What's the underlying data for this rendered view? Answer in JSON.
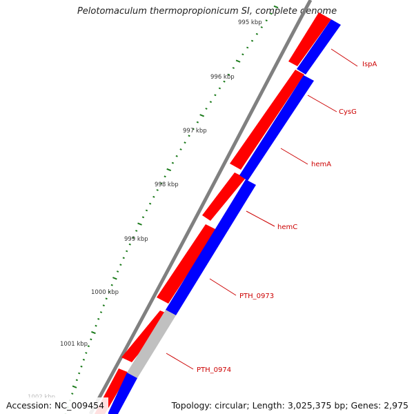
{
  "title": "Pelotomaculum thermopropionicum SI, complete genome",
  "ruler": {
    "labels": [
      "995 kbp",
      "996 kbp",
      "997 kbp",
      "998 kbp",
      "999 kbp",
      "1000 kbp",
      "1001 kbp",
      "1002 kbp"
    ]
  },
  "genes": [
    {
      "name": "IspA",
      "strand": "+"
    },
    {
      "name": "CysG",
      "strand": "+"
    },
    {
      "name": "hemA",
      "strand": "+"
    },
    {
      "name": "hemC",
      "strand": "-"
    },
    {
      "name": "PTH_0973",
      "strand": "+"
    },
    {
      "name": "PTH_0974",
      "strand": "+"
    }
  ],
  "colors": {
    "forward_strand": "#ff0000",
    "reverse_strand": "#0000ff",
    "pseudo_region": "#c0c0c0",
    "backbone": "#808080",
    "ticks": "#1a7a1a",
    "gene_labels": "#cc0000"
  },
  "footer": {
    "accession": "Accession: NC_009454",
    "stats": "Topology: circular; Length: 3,025,375 bp; Genes: 2,975"
  }
}
